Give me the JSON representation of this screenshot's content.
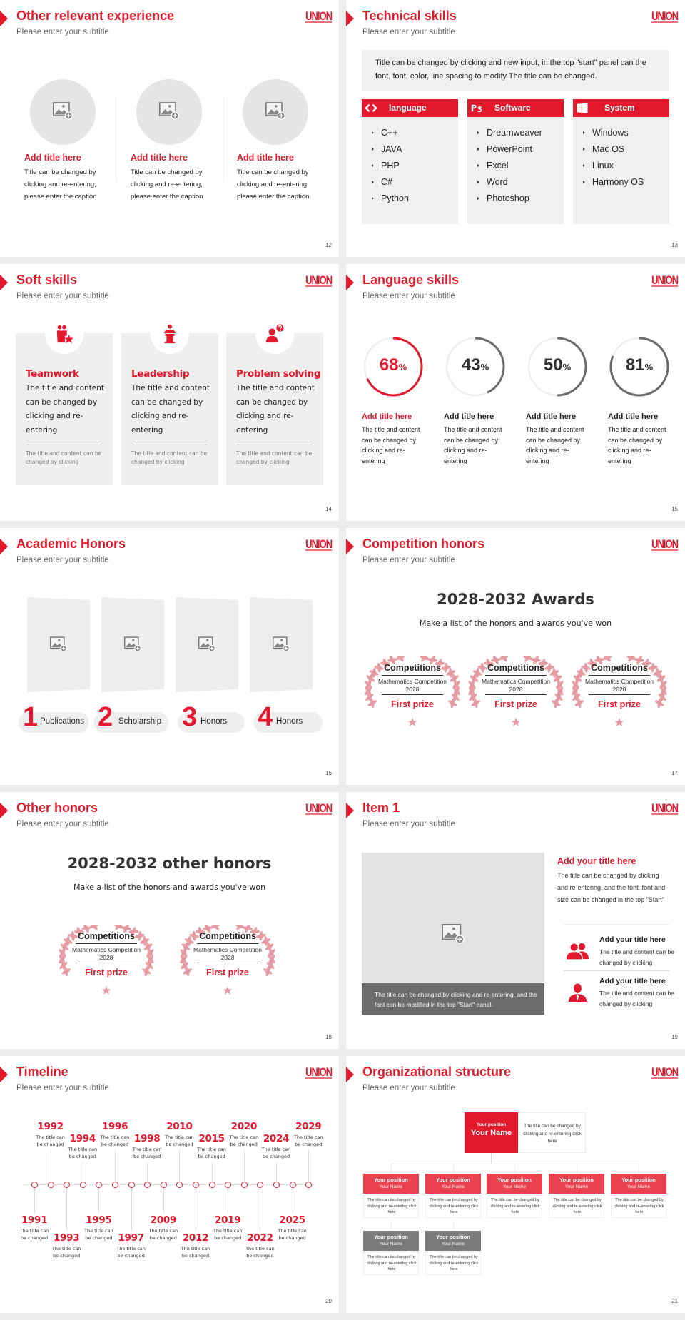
{
  "brand": {
    "logo": "UNION",
    "accent": "#e2192c",
    "secondary_gray": "#6b6b6b"
  },
  "slides": [
    {
      "title": "Other relevant experience",
      "subtitle": "Please enter your subtitle",
      "page": "12",
      "items": [
        {
          "icon": "image-placeholder-icon",
          "title": "Add title here",
          "body": "Title can be changed by clicking and re-entering, please enter the caption"
        },
        {
          "icon": "image-placeholder-icon",
          "title": "Add title here",
          "body": "Title can be changed by clicking and re-entering, please enter the caption"
        },
        {
          "icon": "image-placeholder-icon",
          "title": "Add title here",
          "body": "Title can be changed by clicking and re-entering, please enter the caption"
        }
      ]
    },
    {
      "title": "Technical skills",
      "subtitle": "Please enter your subtitle",
      "page": "13",
      "intro": "Title can be changed by clicking and new input, in the top \"start\" panel can the font, font, color, line spacing to modify The title can be changed.",
      "columns": [
        {
          "icon": "code-icon",
          "header": "language",
          "items": [
            "C++",
            "JAVA",
            "PHP",
            "C#",
            "Python"
          ]
        },
        {
          "icon": "photoshop-icon",
          "header": "Software",
          "items": [
            "Dreamweaver",
            "PowerPoint",
            "Excel",
            "Word",
            "Photoshop"
          ]
        },
        {
          "icon": "windows-icon",
          "header": "System",
          "items": [
            "Windows",
            "Mac OS",
            "Linux",
            "Harmony OS"
          ]
        }
      ]
    },
    {
      "title": "Soft skills",
      "subtitle": "Please enter your subtitle",
      "page": "14",
      "cards": [
        {
          "icon": "teamwork-icon",
          "title": "Teamwork",
          "body": "The title and content can be changed by clicking and re-entering",
          "note": "The title and content can be changed by clicking"
        },
        {
          "icon": "leadership-icon",
          "title": "Leadership",
          "body": "The title and content can be changed by clicking and re-entering",
          "note": "The title and content can be changed by clicking"
        },
        {
          "icon": "problem-solving-icon",
          "title": "Problem solving",
          "body": "The title and content can be changed by clicking and re-entering",
          "note": "The title and content can be changed by clicking"
        }
      ]
    },
    {
      "title": "Language skills",
      "subtitle": "Please enter your subtitle",
      "page": "15",
      "items": [
        {
          "percent": 68,
          "value": "68",
          "unit": "%",
          "title": "Add title here",
          "body": "The title and content can be changed by clicking and re-entering",
          "color": "#e2192c"
        },
        {
          "percent": 43,
          "value": "43",
          "unit": "%",
          "title": "Add title here",
          "body": "The title and content can be changed by clicking and re-entering",
          "color": "#6b6b6b"
        },
        {
          "percent": 50,
          "value": "50",
          "unit": "%",
          "title": "Add title here",
          "body": "The title and content can be changed by clicking and re-entering",
          "color": "#6b6b6b"
        },
        {
          "percent": 81,
          "value": "81",
          "unit": "%",
          "title": "Add title here",
          "body": "The title and content can be changed by clicking and re-entering",
          "color": "#6b6b6b"
        }
      ]
    },
    {
      "title": "Academic Honors",
      "subtitle": "Please enter your subtitle",
      "page": "16",
      "items": [
        {
          "num": "1",
          "label": "Publications"
        },
        {
          "num": "2",
          "label": "Scholarship"
        },
        {
          "num": "3",
          "label": "Honors"
        },
        {
          "num": "4",
          "label": "Honors"
        }
      ]
    },
    {
      "title": "Competition honors",
      "subtitle": "Please enter your subtitle",
      "page": "17",
      "heading": "2028-2032 Awards",
      "sub": "Make a list of the honors and awards you've won",
      "awards": [
        {
          "title": "Competitions",
          "event": "Mathematics Competition",
          "year": "2028",
          "prize": "First prize"
        },
        {
          "title": "Competitions",
          "event": "Mathematics Competition",
          "year": "2028",
          "prize": "First prize"
        },
        {
          "title": "Competitions",
          "event": "Mathematics Competition",
          "year": "2028",
          "prize": "First prize"
        }
      ]
    },
    {
      "title": "Other honors",
      "subtitle": "Please enter your subtitle",
      "page": "18",
      "heading": "2028-2032 other honors",
      "sub": "Make a list of the honors and awards you've won",
      "awards": [
        {
          "title": "Competitions",
          "event": "Mathematics Competition",
          "year": "2028",
          "prize": "First prize"
        },
        {
          "title": "Competitions",
          "event": "Mathematics Competition",
          "year": "2028",
          "prize": "First prize"
        }
      ]
    },
    {
      "title": "Item 1",
      "subtitle": "Please enter your subtitle",
      "page": "19",
      "caption": "The title can be changed by clicking and re-entering, and the font can be modified in the top \"Start\" panel.",
      "main_title": "Add your title here",
      "main_body": "The title can be changed by clicking and re-entering, and the font, font and size can be changed in the top \"Start\"",
      "rows": [
        {
          "icon": "group-icon",
          "title": "Add your title here",
          "body": "The title and content can be changed by clicking"
        },
        {
          "icon": "user-icon",
          "title": "Add your title here",
          "body": "The title and content can be changed by clicking"
        }
      ]
    },
    {
      "title": "Timeline",
      "subtitle": "Please enter your subtitle",
      "page": "20",
      "events": [
        {
          "year": "1991",
          "text": "The title can be changed"
        },
        {
          "year": "1992",
          "text": "The title can be changed"
        },
        {
          "year": "1993",
          "text": "The title can be changed"
        },
        {
          "year": "1994",
          "text": "The title can be changed"
        },
        {
          "year": "1995",
          "text": "The title can be changed"
        },
        {
          "year": "1996",
          "text": "The title can be changed"
        },
        {
          "year": "1997",
          "text": "The title can be changed"
        },
        {
          "year": "1998",
          "text": "The title can be changed"
        },
        {
          "year": "2009",
          "text": "The title can be changed"
        },
        {
          "year": "2010",
          "text": "The title can be changed"
        },
        {
          "year": "2012",
          "text": "The title can be changed"
        },
        {
          "year": "2015",
          "text": "The title can be changed"
        },
        {
          "year": "2019",
          "text": "The title can be changed"
        },
        {
          "year": "2020",
          "text": "The title can be changed"
        },
        {
          "year": "2022",
          "text": "The title can be changed"
        },
        {
          "year": "2024",
          "text": "The title can be changed"
        },
        {
          "year": "2025",
          "text": "The title can be changed"
        },
        {
          "year": "2029",
          "text": "The title can be changed"
        }
      ]
    },
    {
      "title": "Organizational structure",
      "subtitle": "Please enter your subtitle",
      "page": "21",
      "top": {
        "position": "Your position",
        "name": "Your Name",
        "desc": "The title can be changed by clicking and re-entering click here"
      },
      "row1": [
        {
          "position": "Your position",
          "name": "Your Name",
          "desc": "The title can be changed by clicking and re-entering click here"
        },
        {
          "position": "Your position",
          "name": "Your Name",
          "desc": "The title can be changed by clicking and re-entering click here"
        },
        {
          "position": "Your position",
          "name": "Your Name",
          "desc": "The title can be changed by clicking and re-entering click here"
        },
        {
          "position": "Your position",
          "name": "Your Name",
          "desc": "The title can be changed by clicking and re-entering click here"
        },
        {
          "position": "Your position",
          "name": "Your Name",
          "desc": "The title can be changed by clicking and re-entering click here"
        }
      ],
      "row2": [
        {
          "position": "Your position",
          "name": "Your Name",
          "desc": "The title can be changed by clicking and re-entering click here"
        },
        {
          "position": "Your position",
          "name": "Your Name",
          "desc": "The title can be changed by clicking and re-entering click here"
        }
      ]
    }
  ]
}
